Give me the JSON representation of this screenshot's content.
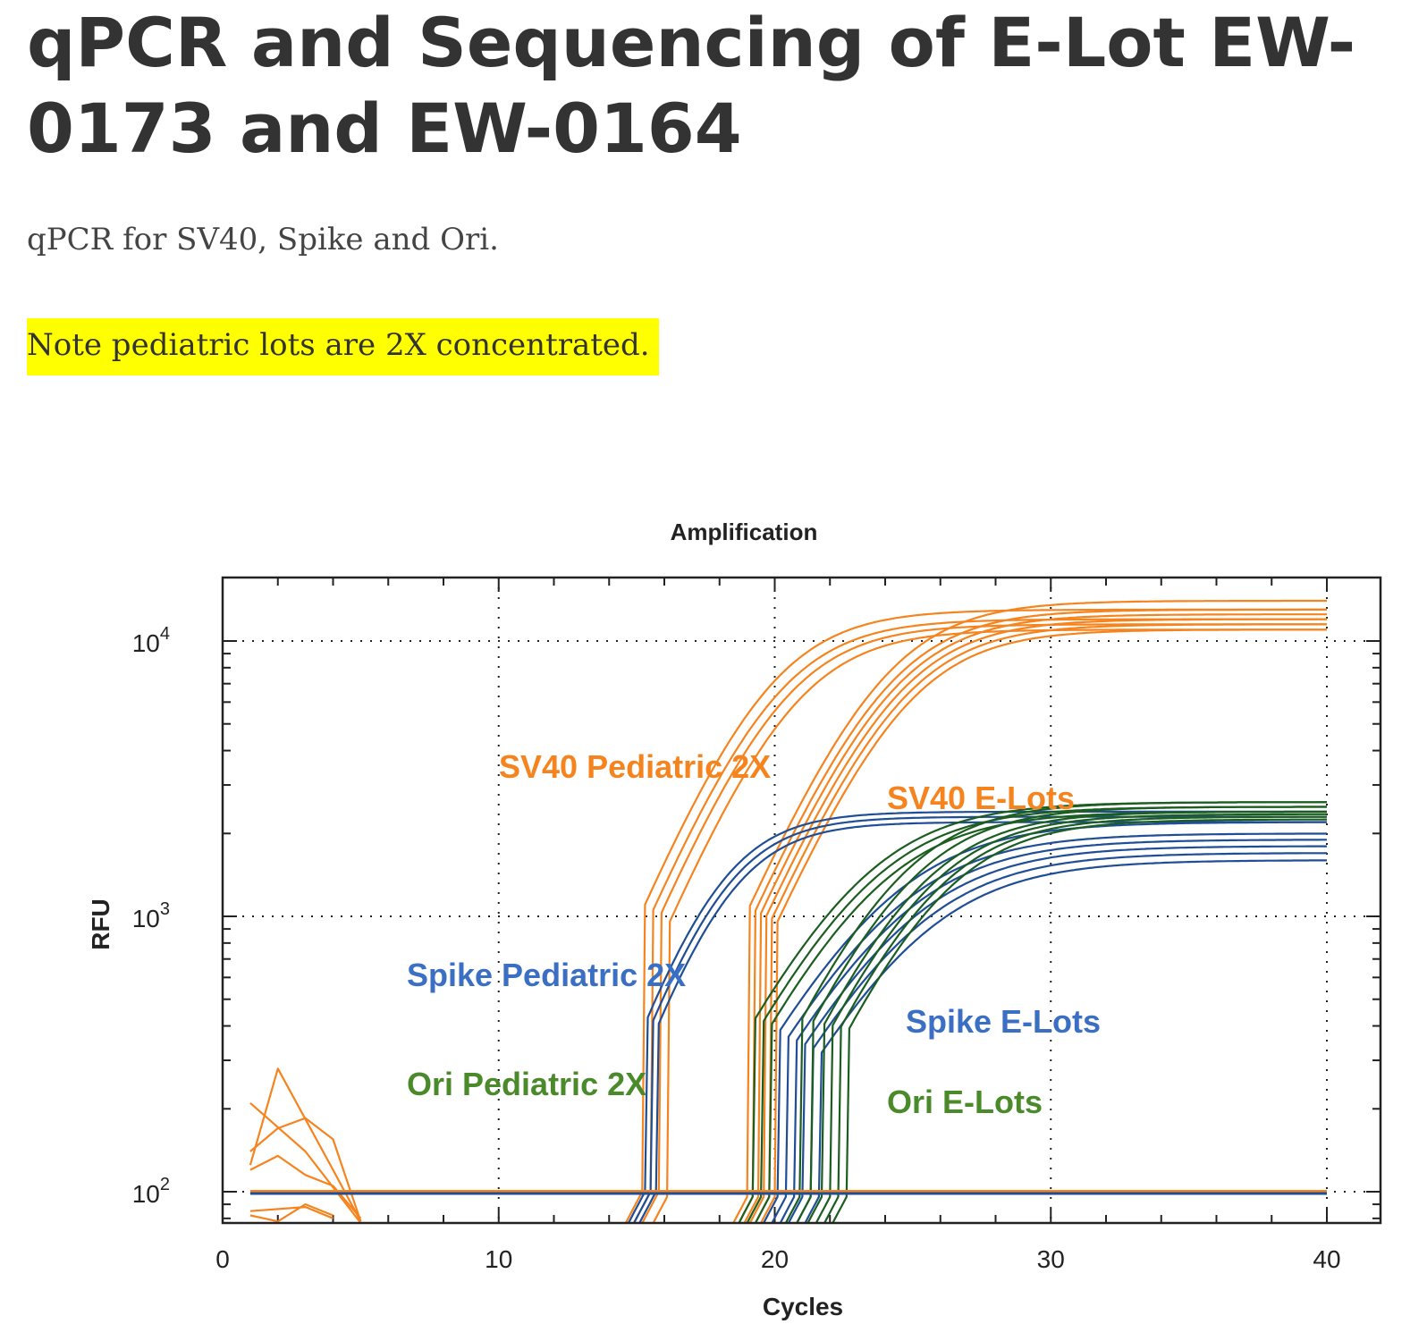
{
  "page": {
    "title": "qPCR and Sequencing of E-Lot EW-0173 and EW-0164",
    "subtitle": "qPCR for SV40, Spike and Ori.",
    "note": "Note pediatric lots are 2X concentrated."
  },
  "colors": {
    "sv40": "#f5841f",
    "spike": "#1f4e96",
    "ori": "#1b5e20",
    "spike_label": "#3a6fc4",
    "ori_label": "#4a8a2a",
    "highlight": "#ffff00"
  },
  "chart_data": {
    "type": "line",
    "title": "Amplification",
    "xlabel": "Cycles",
    "ylabel": "RFU",
    "xlim": [
      0,
      42
    ],
    "ylim": [
      80,
      18000
    ],
    "yscale": "log",
    "grid": true,
    "x_ticks": [
      0,
      10,
      20,
      30,
      40
    ],
    "y_ticks": [
      {
        "value": 100,
        "base": "10",
        "exp": "2"
      },
      {
        "value": 1000,
        "base": "10",
        "exp": "3"
      },
      {
        "value": 10000,
        "base": "10",
        "exp": "4"
      }
    ],
    "baseline": 100,
    "series": [
      {
        "name": "SV40 Pediatric 2X",
        "color": "#f5841f",
        "threshold_cycles": [
          15.2,
          15.5,
          15.8,
          16.2
        ],
        "plateau": [
          13000,
          12000,
          11500,
          11000
        ],
        "rate": 0.55
      },
      {
        "name": "SV40 E-Lots",
        "color": "#f5841f",
        "threshold_cycles": [
          19.1,
          19.3,
          19.5,
          19.7,
          19.9,
          20.1
        ],
        "plateau": [
          14000,
          13000,
          12500,
          12000,
          11500,
          11000
        ],
        "rate": 0.53
      },
      {
        "name": "Spike Pediatric 2X",
        "color": "#1f4e96",
        "threshold_cycles": [
          15.3,
          15.5,
          15.7
        ],
        "plateau": [
          2400,
          2300,
          2200
        ],
        "rate": 0.65
      },
      {
        "name": "Spike E-Lots",
        "color": "#1f4e96",
        "threshold_cycles": [
          20.2,
          20.5,
          20.8,
          21.1,
          21.4,
          21.7
        ],
        "plateau": [
          2200,
          2000,
          1900,
          1800,
          1700,
          1600
        ],
        "rate": 0.42
      },
      {
        "name": "Ori Pediatric 2X",
        "color": "#1b5e20",
        "threshold_cycles": [
          19.3,
          19.6,
          19.9
        ],
        "plateau": [
          2600,
          2500,
          2400
        ],
        "rate": 0.45
      },
      {
        "name": "Ori E-Lots",
        "color": "#1b5e20",
        "threshold_cycles": [
          21.0,
          21.4,
          21.8,
          22.1,
          22.4,
          22.7
        ],
        "plateau": [
          2600,
          2500,
          2400,
          2350,
          2300,
          2250
        ],
        "rate": 0.5
      }
    ],
    "noise_traces": [
      {
        "color": "#f5841f",
        "values": [
          [
            1,
            210
          ],
          [
            3,
            140
          ],
          [
            5,
            75
          ]
        ]
      },
      {
        "color": "#f5841f",
        "values": [
          [
            1,
            125
          ],
          [
            2,
            280
          ],
          [
            4,
            120
          ],
          [
            5,
            78
          ]
        ]
      },
      {
        "color": "#f5841f",
        "values": [
          [
            1,
            140
          ],
          [
            2,
            170
          ],
          [
            3,
            185
          ],
          [
            4,
            155
          ],
          [
            5,
            78
          ]
        ]
      },
      {
        "color": "#f5841f",
        "values": [
          [
            1,
            120
          ],
          [
            2,
            135
          ],
          [
            3,
            115
          ],
          [
            4,
            105
          ],
          [
            5,
            80
          ]
        ]
      },
      {
        "color": "#f5841f",
        "values": [
          [
            1,
            82
          ],
          [
            2,
            78
          ],
          [
            3,
            90
          ],
          [
            4,
            82
          ]
        ]
      },
      {
        "color": "#f5841f",
        "values": [
          [
            1,
            85
          ],
          [
            3,
            88
          ],
          [
            4,
            80
          ]
        ]
      }
    ],
    "annotations": [
      {
        "text": "SV40 Pediatric 2X",
        "color": "#f5841f"
      },
      {
        "text": "SV40 E-Lots",
        "color": "#f5841f"
      },
      {
        "text": "Spike Pediatric 2X",
        "color": "#3a6fc4"
      },
      {
        "text": "Spike E-Lots",
        "color": "#3a6fc4"
      },
      {
        "text": "Ori Pediatric 2X",
        "color": "#4a8a2a"
      },
      {
        "text": "Ori E-Lots",
        "color": "#4a8a2a"
      }
    ]
  }
}
